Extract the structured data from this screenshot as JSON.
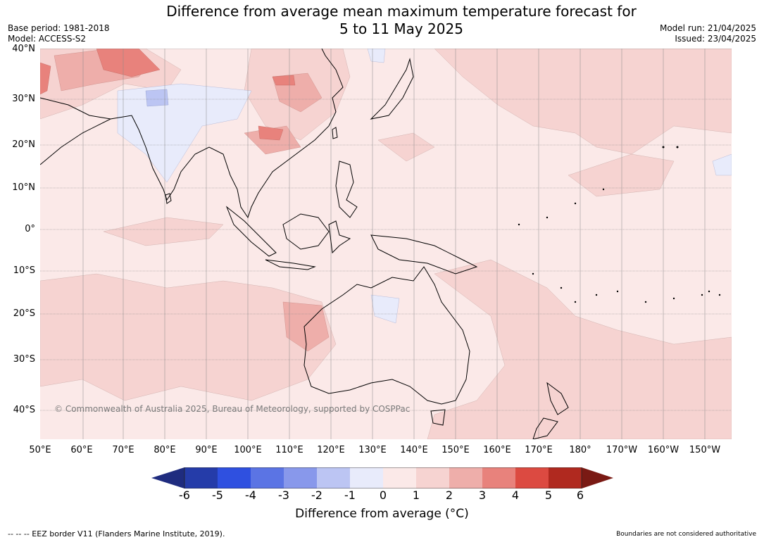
{
  "title_line1": "Difference from average mean maximum temperature forecast for",
  "title_line2": "5 to 11 May 2025",
  "base_period": "Base period: 1981-2018",
  "model": "Model: ACCESS-S2",
  "model_run": "Model run: 21/04/2025",
  "issued": "Issued: 23/04/2025",
  "copyright": "© Commonwealth of Australia 2025, Bureau of Meteorology, supported by COSPPac",
  "footer_left": "--  --  -- EEZ border V11 (Flanders Marine Institute, 2019).",
  "footer_right": "Boundaries are not considered authoritative",
  "lat_labels": [
    "40°N",
    "30°N",
    "20°N",
    "10°N",
    "0°",
    "10°S",
    "20°S",
    "30°S",
    "40°S"
  ],
  "lon_labels": [
    "50°E",
    "60°E",
    "70°E",
    "80°E",
    "90°E",
    "100°E",
    "110°E",
    "120°E",
    "130°E",
    "140°E",
    "150°E",
    "160°E",
    "170°E",
    "180°",
    "170°W",
    "160°W",
    "150°W"
  ],
  "colorbar": {
    "label": "Difference from average (°C)",
    "ticks": [
      "-6",
      "-5",
      "-4",
      "-3",
      "-2",
      "-1",
      "0",
      "1",
      "2",
      "3",
      "4",
      "5",
      "6"
    ],
    "colors": [
      "#1f2c7f",
      "#253ca9",
      "#2f50e0",
      "#5b74e4",
      "#8898eb",
      "#bcc5f3",
      "#e8ebfb",
      "#fbe9e8",
      "#f6d3d1",
      "#eeaeaa",
      "#e8827c",
      "#dc4a41",
      "#b0291f",
      "#7a1a14"
    ]
  }
}
